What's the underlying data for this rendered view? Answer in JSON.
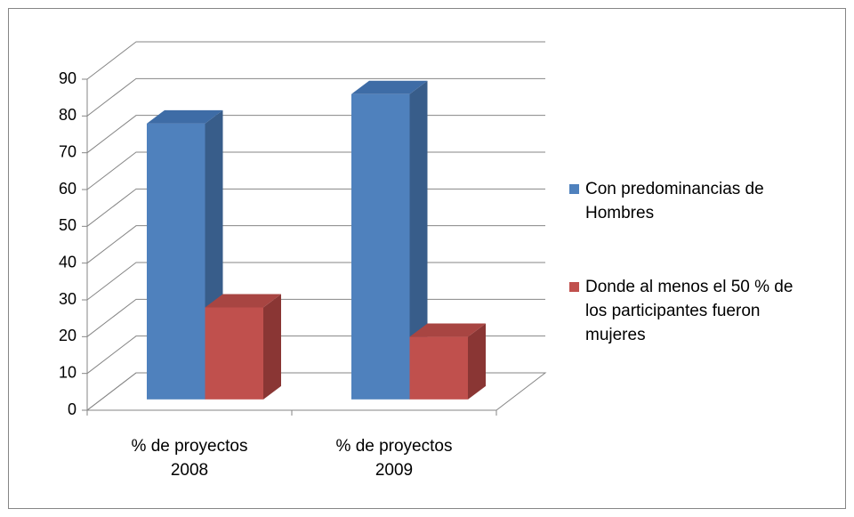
{
  "chart_data": {
    "type": "bar3d",
    "categories": [
      "% de proyectos 2008",
      "% de proyectos 2009"
    ],
    "series": [
      {
        "name": "Con predominancias de Hombres",
        "color": "#4f81bd",
        "side": "#385d8a",
        "top": "#3e6ca6",
        "values": [
          75,
          83
        ]
      },
      {
        "name": "Donde al menos el 50 % de los participantes fueron mujeres",
        "color": "#c0504d",
        "side": "#8a3634",
        "top": "#a84542",
        "values": [
          25,
          17
        ]
      }
    ],
    "ylim": [
      0,
      90
    ],
    "yticks": [
      0,
      10,
      20,
      30,
      40,
      50,
      60,
      70,
      80,
      90
    ],
    "grid": true,
    "legend": "right"
  }
}
